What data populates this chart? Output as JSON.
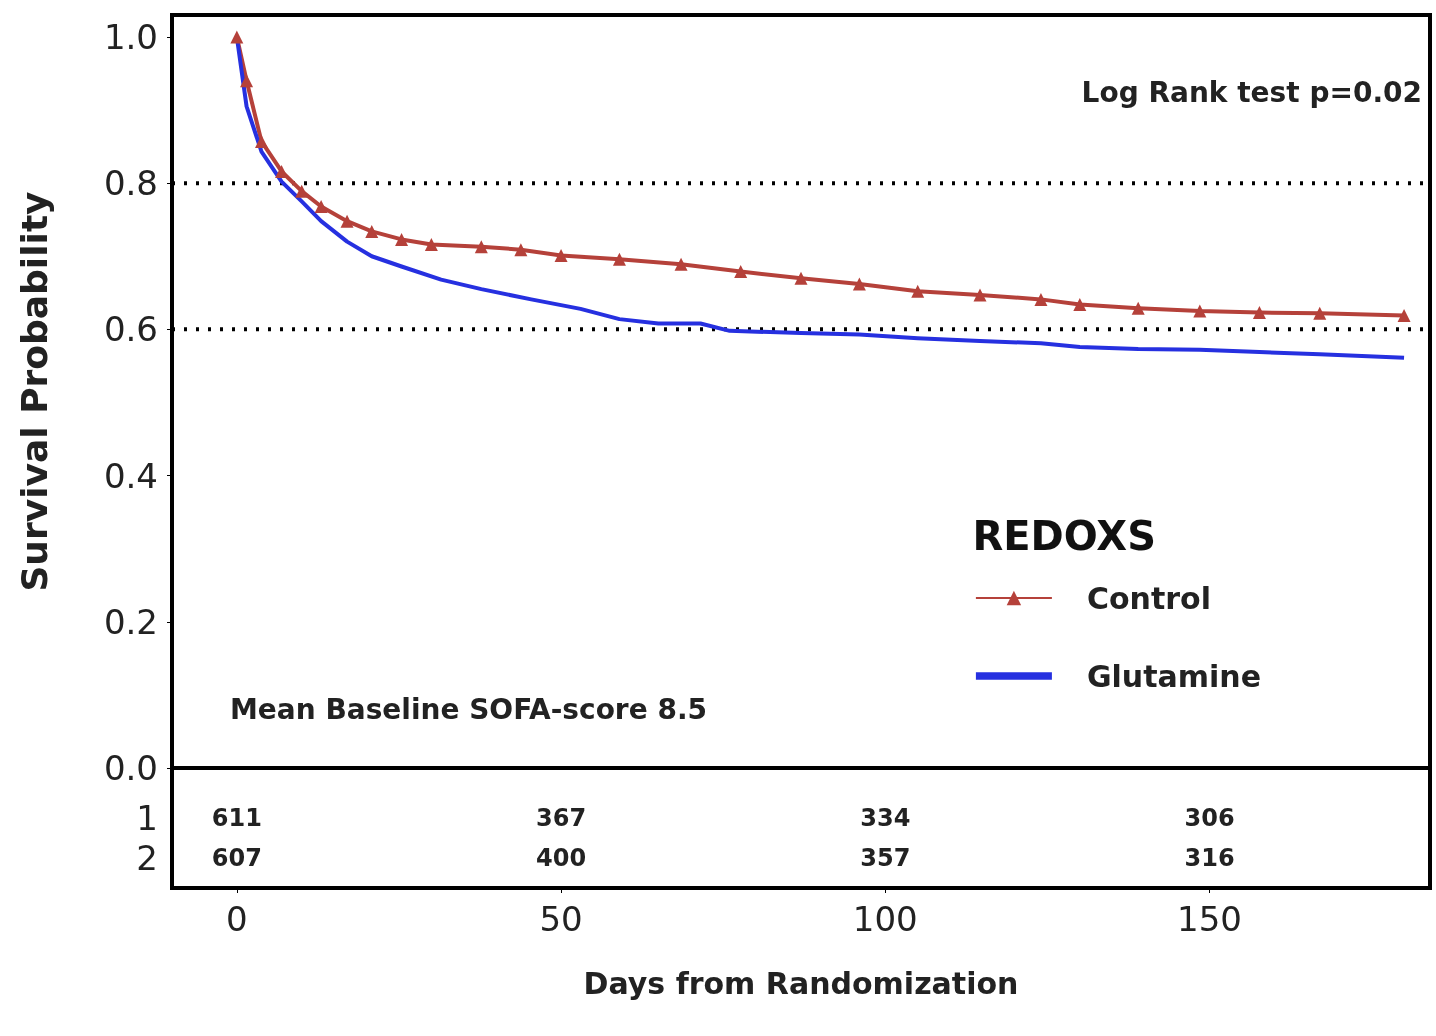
{
  "chart_data": {
    "type": "line",
    "xlabel": "Days from Randomization",
    "ylabel": "Survival Probability",
    "legend_title": "REDOXS",
    "legend": "bottom right",
    "grid": false,
    "xlim": [
      -10,
      184
    ],
    "xticks": [
      0,
      50,
      100,
      150
    ],
    "ylim": [
      0,
      1.03
    ],
    "yticks": [
      {
        "value": 0,
        "label": "0.0"
      },
      0.2,
      0.4,
      0.6,
      0.8,
      {
        "value": 1,
        "label": "1.0"
      }
    ],
    "ref_lines": [
      {
        "axis": "y",
        "value": 0.8,
        "color": "#000000",
        "line_style": "dotted"
      },
      {
        "axis": "y",
        "value": 0.6,
        "color": "#000000",
        "line_style": "dotted"
      }
    ],
    "series": [
      {
        "name": "Control",
        "color": "#b5413a",
        "marker": "triangle",
        "x": [
          0,
          1.5,
          3.8,
          6.9,
          10,
          13,
          17,
          20.8,
          25.4,
          30,
          37.7,
          43.8,
          50,
          59,
          68.5,
          77.7,
          87,
          96,
          105,
          114.6,
          124,
          130,
          139,
          148.5,
          157.7,
          167,
          180
        ],
        "values": [
          1.0,
          0.94,
          0.857,
          0.816,
          0.789,
          0.768,
          0.748,
          0.734,
          0.723,
          0.716,
          0.713,
          0.709,
          0.701,
          0.696,
          0.689,
          0.679,
          0.67,
          0.662,
          0.652,
          0.647,
          0.641,
          0.634,
          0.629,
          0.625,
          0.623,
          0.622,
          0.619
        ]
      },
      {
        "name": "Glutamine",
        "color": "#2630e0",
        "marker": "none",
        "x": [
          0,
          1.5,
          3.8,
          6.9,
          10,
          13,
          17,
          20.8,
          25.4,
          31.5,
          37.7,
          45.4,
          53,
          59,
          65,
          71.5,
          76,
          87,
          96,
          105,
          114.6,
          124,
          130,
          139,
          148.5,
          157.7,
          167,
          180
        ],
        "values": [
          1.0,
          0.905,
          0.843,
          0.802,
          0.775,
          0.748,
          0.72,
          0.7,
          0.686,
          0.668,
          0.655,
          0.641,
          0.628,
          0.614,
          0.608,
          0.608,
          0.598,
          0.595,
          0.593,
          0.588,
          0.584,
          0.581,
          0.576,
          0.573,
          0.572,
          0.569,
          0.566,
          0.561
        ]
      }
    ],
    "annotations": [
      "Log Rank test p=0.02",
      "Mean Baseline SOFA-score 8.5",
      "1",
      "611",
      "367",
      "334",
      "306",
      "2",
      "607",
      "400",
      "357",
      "316"
    ]
  }
}
